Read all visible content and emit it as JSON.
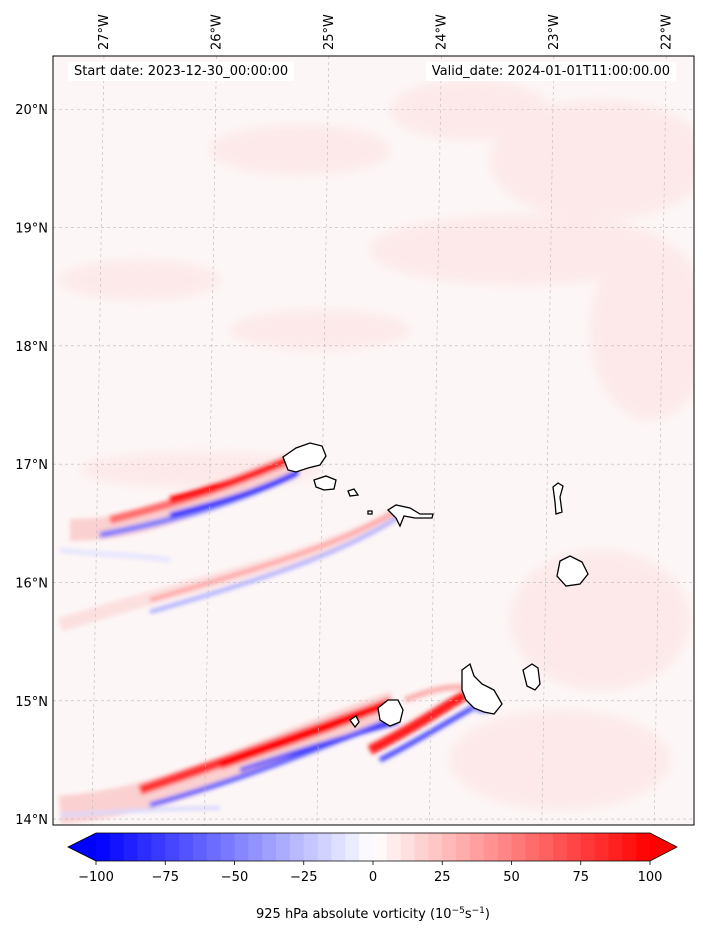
{
  "header": {
    "start_label": "Start date: 2023-12-30_00:00:00",
    "valid_label": "Valid_date: 2024-01-01T11:00:00.00"
  },
  "map": {
    "extent": {
      "lon": [
        -27.4,
        -21.7
      ],
      "lat": [
        13.95,
        20.45
      ]
    },
    "lon_ticks": [
      -27,
      -26,
      -25,
      -24,
      -23,
      -22
    ],
    "lon_tick_labels": [
      "27°W",
      "26°W",
      "25°W",
      "24°W",
      "23°W",
      "22°W"
    ],
    "lat_ticks": [
      14,
      15,
      16,
      17,
      18,
      19,
      20
    ],
    "lat_tick_labels": [
      "14°N",
      "15°N",
      "16°N",
      "17°N",
      "18°N",
      "19°N",
      "20°N"
    ],
    "islands": [
      "Santo Antão",
      "São Vicente",
      "Santa Luzia",
      "São Nicolau",
      "Sal",
      "Boa Vista",
      "Maio",
      "Santiago",
      "Fogo",
      "Brava"
    ]
  },
  "colorbar": {
    "min": -100,
    "max": 100,
    "ticks": [
      -100,
      -75,
      -50,
      -25,
      0,
      25,
      50,
      75,
      100
    ],
    "tick_labels": [
      "−100",
      "−75",
      "−50",
      "−25",
      "0",
      "25",
      "50",
      "75",
      "100"
    ],
    "label": "925 hPa absolute vorticity (10",
    "label_exp1": "−5",
    "label_mid": "s",
    "label_exp2": "−1",
    "label_end": ")",
    "color_neg": "#0000ff",
    "color_zero": "#ffffff",
    "color_pos": "#ff0000"
  }
}
